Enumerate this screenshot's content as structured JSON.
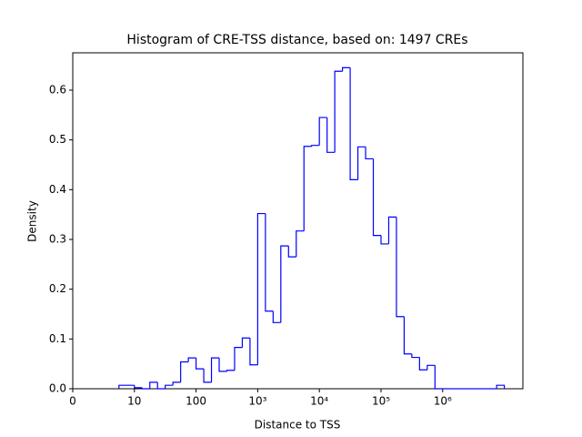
{
  "chart_data": {
    "type": "histogram",
    "title": "Histogram of CRE-TSS distance, based on: 1497 CREs",
    "x_label": "Distance to TSS",
    "y_label": "Density",
    "color": "#0000ff",
    "xscale": "symlog",
    "linthresh": 10,
    "bins": [
      7.499,
      10,
      13.34,
      17.78,
      23.71,
      31.62,
      42.17,
      56.23,
      74.99,
      100,
      133.4,
      177.8,
      237.1,
      316.2,
      421.7,
      562.3,
      749.9,
      1000,
      1334,
      1778,
      2371,
      3162,
      4217,
      5623,
      7499,
      10000,
      13335,
      17783,
      23714,
      31623,
      42170,
      56234,
      74989,
      100000,
      133352,
      177828,
      237137,
      316228,
      421697,
      562341,
      749894,
      1000000,
      1333521,
      1778279,
      2371374,
      3162278,
      4216965,
      5623413,
      7498942,
      10000000
    ],
    "values": [
      0.007,
      0.002,
      0,
      0.013,
      0,
      0.007,
      0.013,
      0.054,
      0.062,
      0.04,
      0.013,
      0.062,
      0.035,
      0.037,
      0.083,
      0.102,
      0.048,
      0.352,
      0.156,
      0.133,
      0.287,
      0.265,
      0.317,
      0.487,
      0.489,
      0.545,
      0.475,
      0.638,
      0.645,
      0.42,
      0.486,
      0.462,
      0.308,
      0.291,
      0.345,
      0.145,
      0.07,
      0.063,
      0.038,
      0.047,
      0,
      0,
      0,
      0,
      0,
      0,
      0,
      0,
      0.007
    ],
    "xlim": [
      0,
      20000000
    ],
    "xticks": [
      0,
      10,
      100,
      {
        "value": 1000,
        "label": "10³"
      },
      {
        "value": 10000,
        "label": "10⁴"
      },
      {
        "value": 100000,
        "label": "10⁵"
      },
      {
        "value": 1000000,
        "label": "10⁶"
      }
    ],
    "ylim": [
      0,
      0.675
    ],
    "yticks": [
      {
        "value": 0,
        "label": "0.0"
      },
      0.1,
      0.2,
      0.3,
      0.4,
      0.5,
      0.6
    ]
  }
}
